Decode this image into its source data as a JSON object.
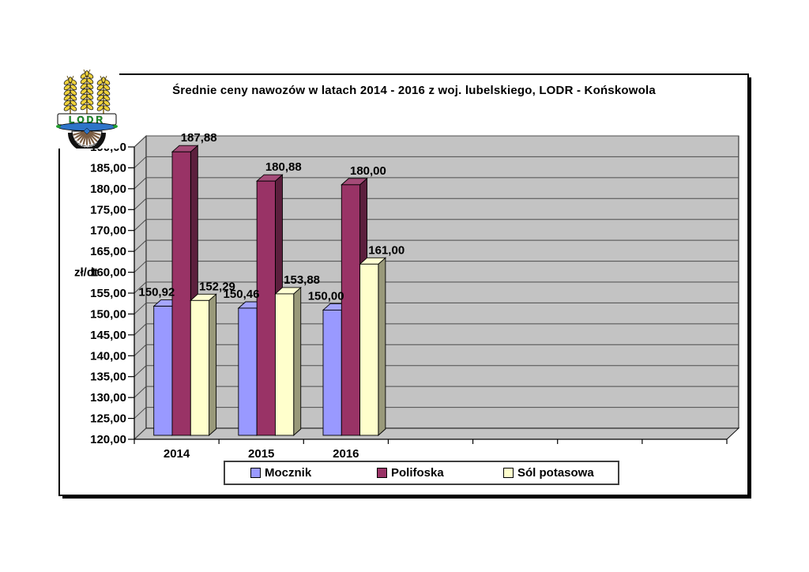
{
  "logo": {
    "org_abbr": "LODR",
    "org_city": "KOŃSKOWOLA",
    "colors": {
      "wheat": "#EFD23C",
      "wheat_outline": "#1a1a1a",
      "abbr_text": "#1f9d2c",
      "ribbon": "#2e74c8",
      "spokes": "#7a5c42",
      "ring": "#111111"
    }
  },
  "chart_data": {
    "type": "bar",
    "projection": "3d",
    "title": "Średnie ceny nawozów w latach 2014 - 2016 z woj. lubelskiego, LODR - Końskowola",
    "y_axis": {
      "label": "zł/dt",
      "min": 120,
      "max": 190,
      "step": 5,
      "tick_labels": [
        "190,00",
        "185,00",
        "180,00",
        "175,00",
        "170,00",
        "165,00",
        "160,00",
        "155,00",
        "150,00",
        "145,00",
        "140,00",
        "135,00",
        "130,00",
        "125,00",
        "120,00"
      ]
    },
    "x_axis": {
      "tick_slots": 7
    },
    "categories": [
      "2014",
      "2015",
      "2016"
    ],
    "series": [
      {
        "name": "Mocznik",
        "color": "#9999FF",
        "values": [
          150.92,
          150.46,
          150.0
        ],
        "value_labels": [
          "150,92",
          "150,46",
          "150,00"
        ]
      },
      {
        "name": "Polifoska",
        "color": "#993366",
        "values": [
          187.88,
          180.88,
          180.0
        ],
        "value_labels": [
          "187,88",
          "180,88",
          "180,00"
        ]
      },
      {
        "name": "Sól potasowa",
        "color": "#FFFFCC",
        "values": [
          152.29,
          153.88,
          161.0
        ],
        "value_labels": [
          "152,29",
          "153,88",
          "161,00"
        ]
      }
    ],
    "legend": {
      "position": "bottom"
    },
    "grid": true,
    "wall_color": "#c3c3c3",
    "gridline_color": "#4c4c4c"
  }
}
